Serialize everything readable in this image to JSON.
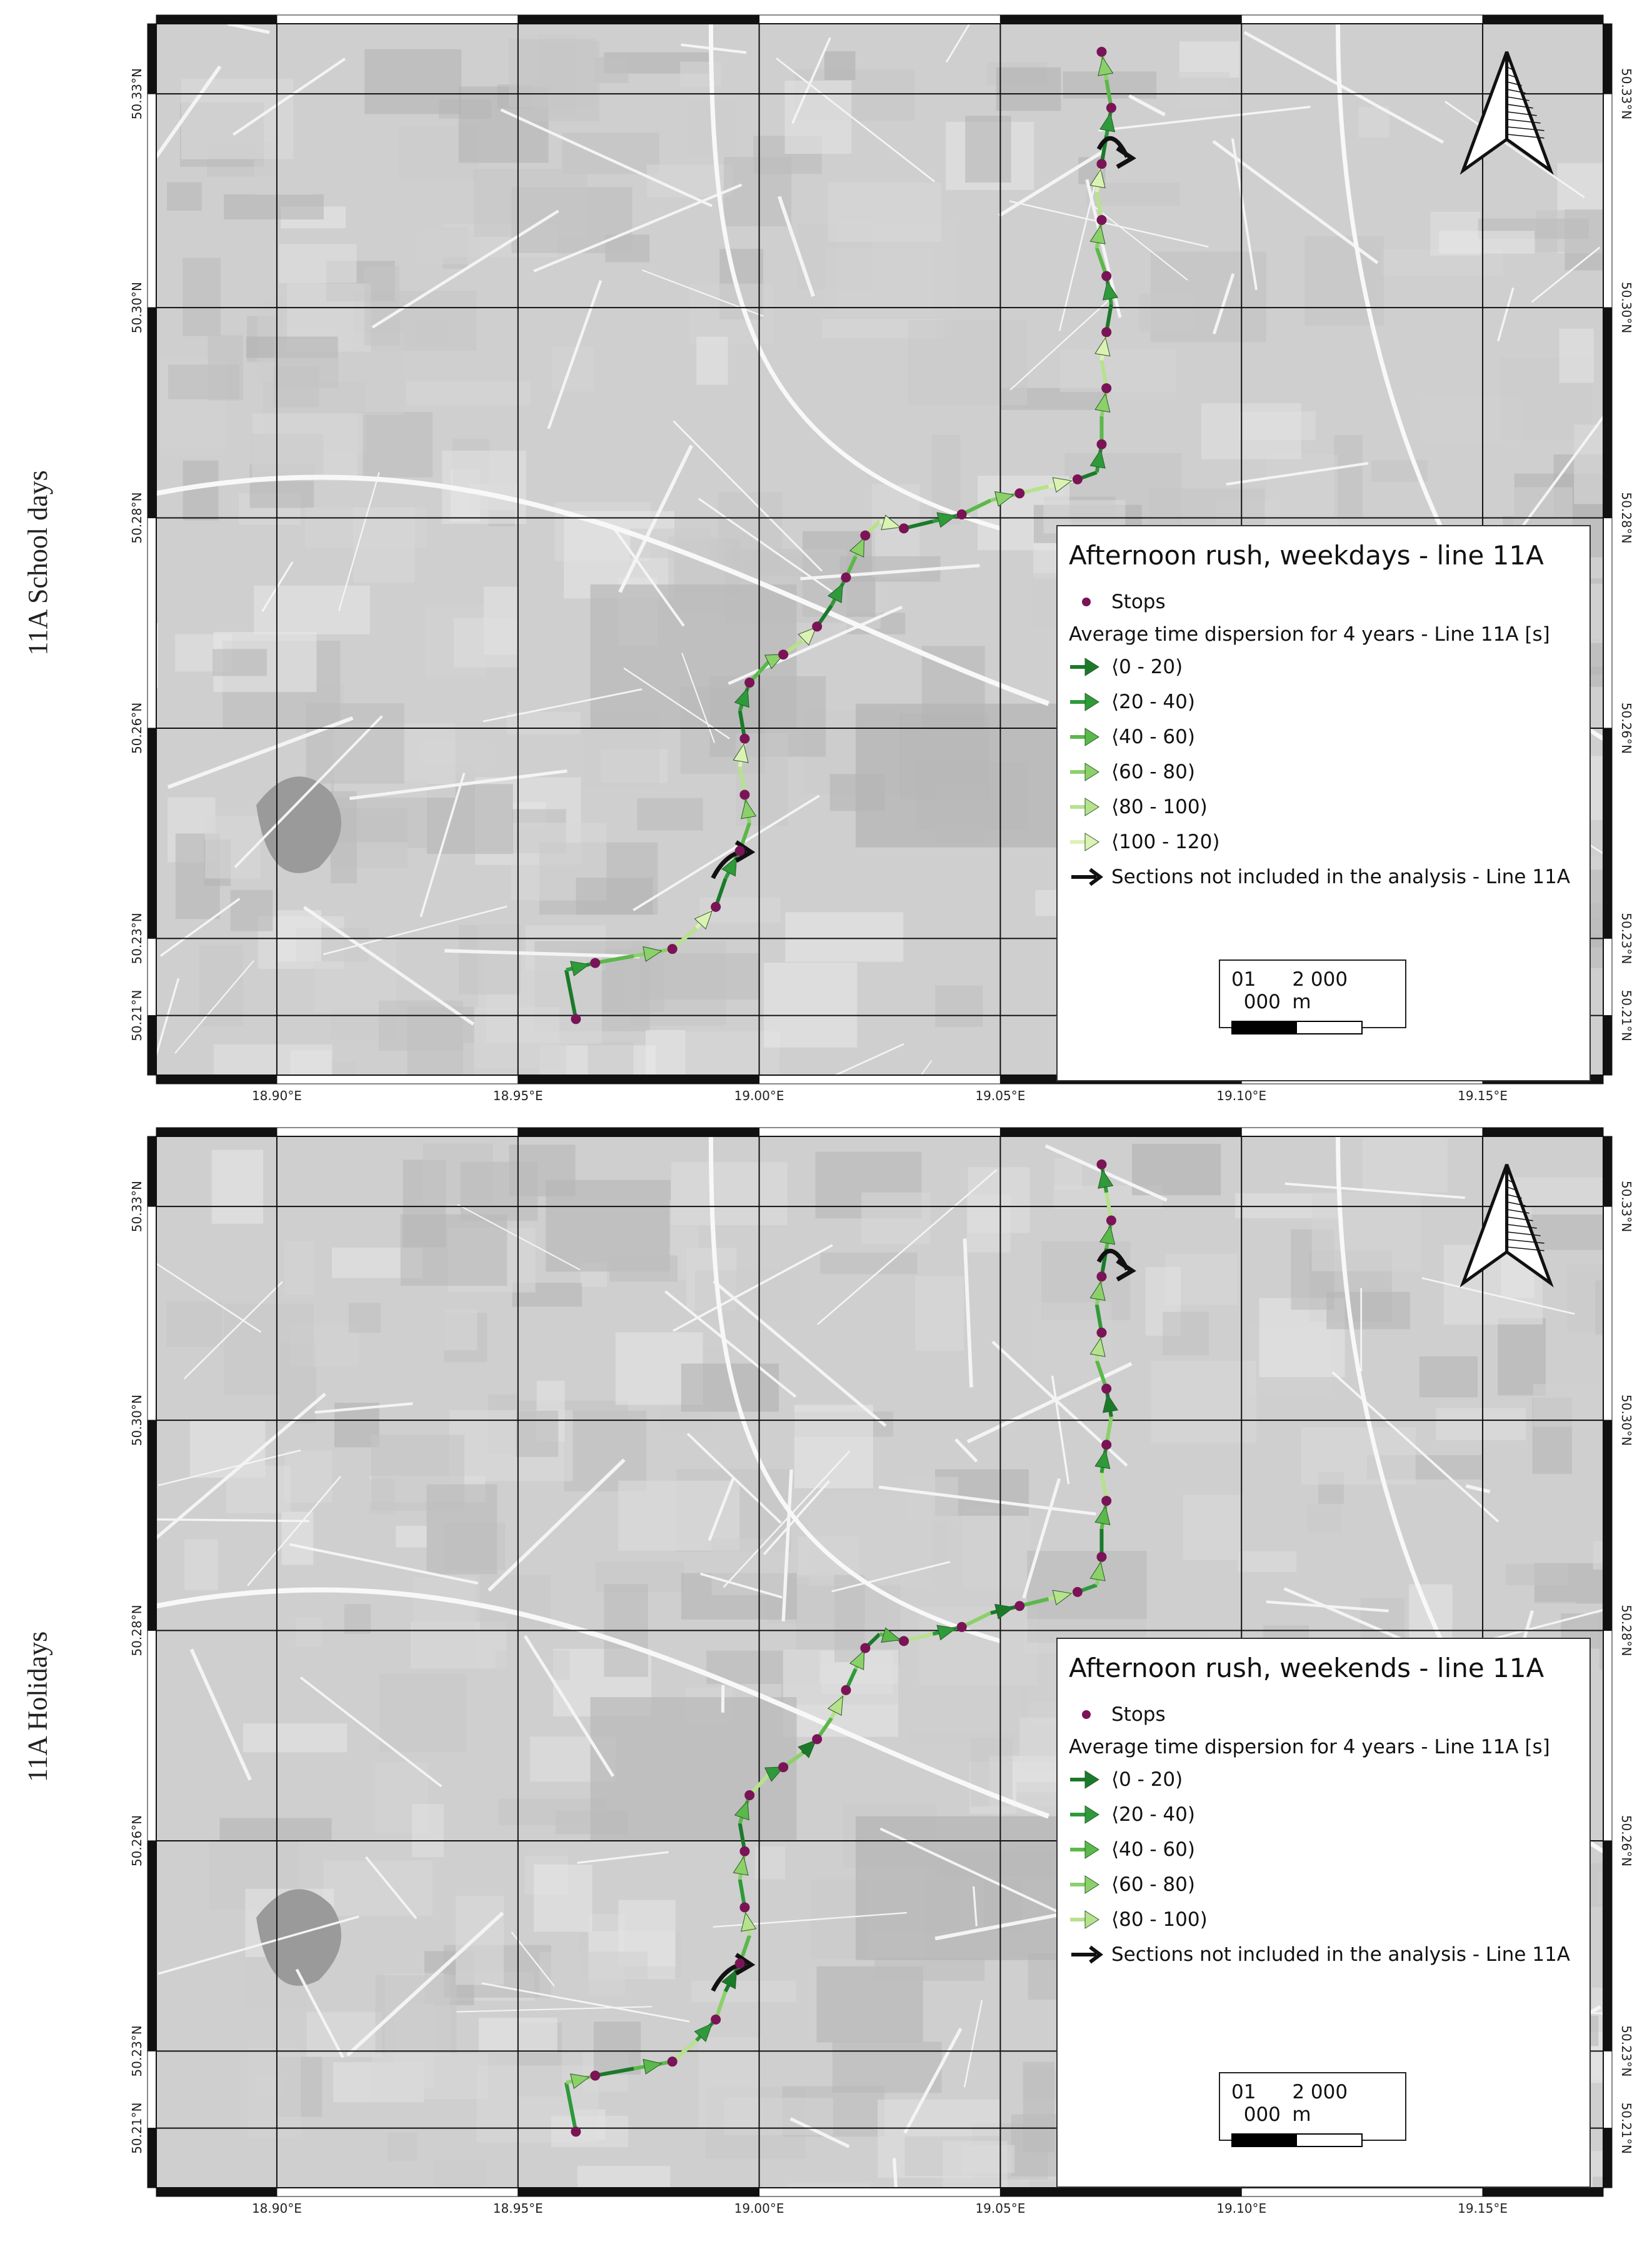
{
  "panels": [
    {
      "side_label": "11A School days",
      "legend": {
        "title": "Afternoon rush, weekdays - line 11A",
        "stops_label": "Stops",
        "dispersion_title": "Average time dispersion for 4 years - Line 11A [s]",
        "classes": [
          {
            "label": "⟨0 - 20)",
            "color": "#1a7a2a"
          },
          {
            "label": "⟨20 - 40)",
            "color": "#2e9a3a"
          },
          {
            "label": "⟨40 - 60)",
            "color": "#5bb84a"
          },
          {
            "label": "⟨60 - 80)",
            "color": "#8cd06a"
          },
          {
            "label": "⟨80 - 100)",
            "color": "#b6e28c"
          },
          {
            "label": "⟨100 - 120)",
            "color": "#dcf2b4"
          }
        ],
        "excluded_label": "Sections not included in the analysis - Line 11A"
      },
      "scale": {
        "labels": [
          "0",
          "1 000",
          "2 000 m"
        ]
      }
    },
    {
      "side_label": "11A Holidays",
      "legend": {
        "title": "Afternoon rush, weekends - line 11A",
        "stops_label": "Stops",
        "dispersion_title": "Average time dispersion for 4 years - Line 11A [s]",
        "classes": [
          {
            "label": "⟨0 - 20)",
            "color": "#1a7a2a"
          },
          {
            "label": "⟨20 - 40)",
            "color": "#2e9a3a"
          },
          {
            "label": "⟨40 - 60)",
            "color": "#5bb84a"
          },
          {
            "label": "⟨60 - 80)",
            "color": "#8cd06a"
          },
          {
            "label": "⟨80 - 100)",
            "color": "#b6e28c"
          }
        ],
        "excluded_label": "Sections not included in the analysis - Line 11A"
      },
      "scale": {
        "labels": [
          "0",
          "1 000",
          "2 000 m"
        ]
      }
    }
  ],
  "lon_labels": [
    "18.90°E",
    "18.95°E",
    "19.00°E",
    "19.05°E",
    "19.10°E",
    "19.15°E"
  ],
  "lat_labels": [
    "50.33°N",
    "50.30°N",
    "50.28°N",
    "50.26°N",
    "50.23°N",
    "50.21°N"
  ],
  "route": [
    [
      18.962,
      50.2
    ],
    [
      18.96,
      50.207
    ],
    [
      18.966,
      50.208
    ],
    [
      18.974,
      50.209
    ],
    [
      18.982,
      50.21
    ],
    [
      18.987,
      50.213
    ],
    [
      18.991,
      50.216
    ],
    [
      18.993,
      50.22
    ],
    [
      18.996,
      50.224
    ],
    [
      18.998,
      50.228
    ],
    [
      18.997,
      50.232
    ],
    [
      18.996,
      50.236
    ],
    [
      18.997,
      50.24
    ],
    [
      18.996,
      50.244
    ],
    [
      18.998,
      50.248
    ],
    [
      19.002,
      50.251
    ],
    [
      19.005,
      50.252
    ],
    [
      19.009,
      50.254
    ],
    [
      19.012,
      50.256
    ],
    [
      19.015,
      50.259
    ],
    [
      19.018,
      50.263
    ],
    [
      19.02,
      50.266
    ],
    [
      19.022,
      50.269
    ],
    [
      19.025,
      50.271
    ],
    [
      19.03,
      50.27
    ],
    [
      19.036,
      50.271
    ],
    [
      19.042,
      50.272
    ],
    [
      19.048,
      50.274
    ],
    [
      19.054,
      50.275
    ],
    [
      19.06,
      50.276
    ],
    [
      19.066,
      50.277
    ],
    [
      19.07,
      50.278
    ],
    [
      19.071,
      50.282
    ],
    [
      19.071,
      50.286
    ],
    [
      19.072,
      50.29
    ],
    [
      19.071,
      50.294
    ],
    [
      19.072,
      50.298
    ],
    [
      19.073,
      50.302
    ],
    [
      19.072,
      50.306
    ],
    [
      19.07,
      50.31
    ],
    [
      19.071,
      50.314
    ],
    [
      19.07,
      50.318
    ],
    [
      19.071,
      50.322
    ],
    [
      19.072,
      50.326
    ],
    [
      19.073,
      50.33
    ],
    [
      19.072,
      50.334
    ],
    [
      19.071,
      50.338
    ]
  ],
  "excluded_sections": [
    [
      [
        18.993,
        50.221
      ],
      [
        18.996,
        50.224
      ]
    ],
    [
      [
        19.073,
        50.325
      ],
      [
        19.075,
        50.323
      ]
    ]
  ]
}
